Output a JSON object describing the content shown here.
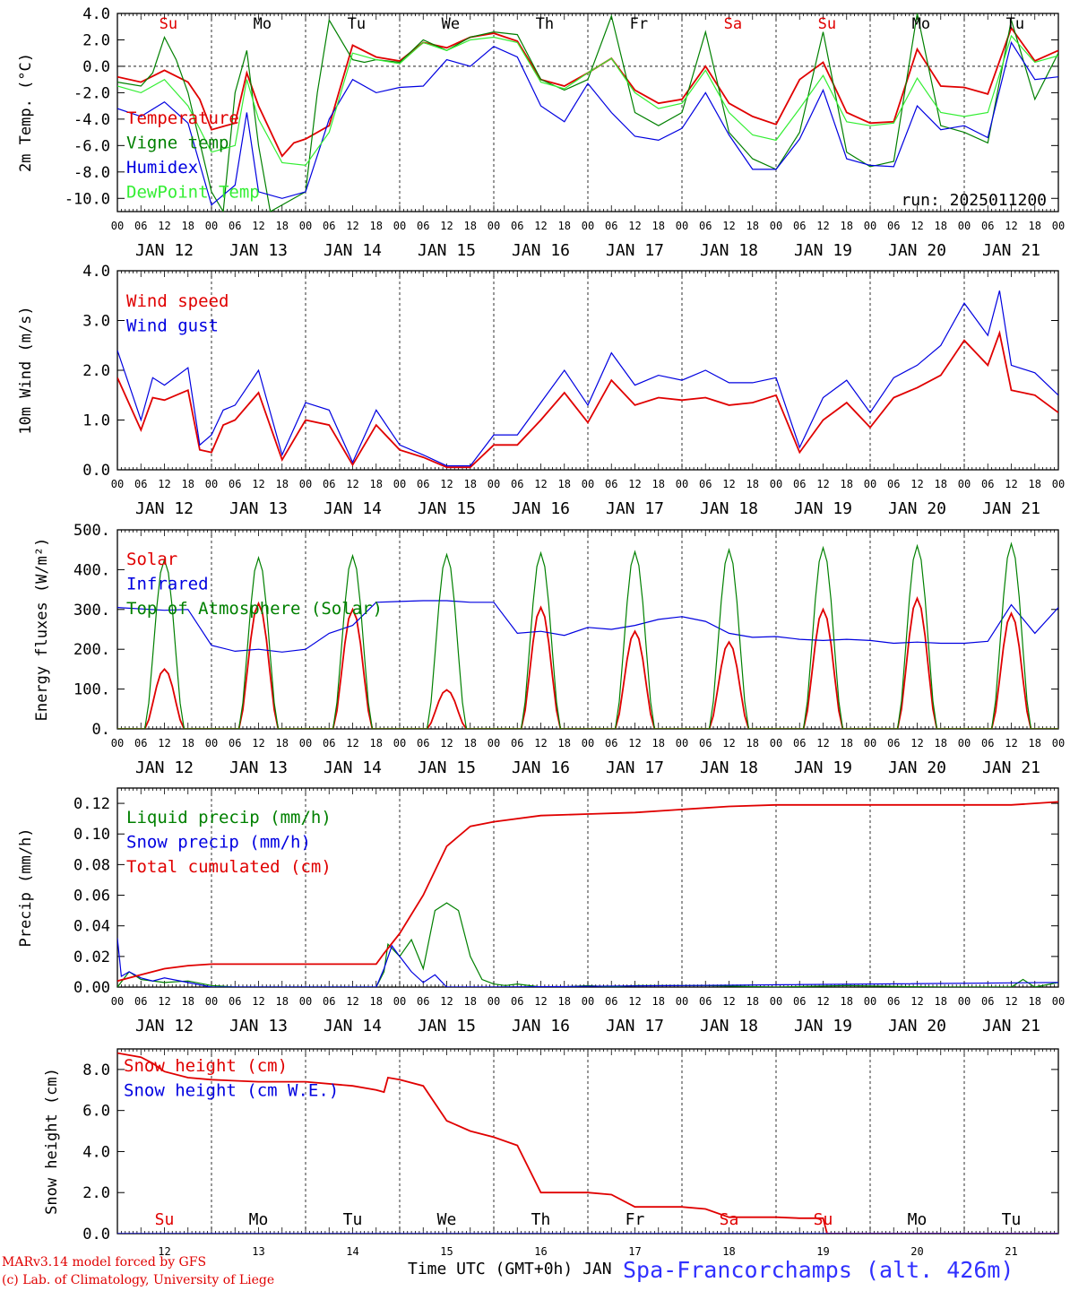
{
  "station": "Spa-Francorchamps (alt. 426m)",
  "credit_line1": "MARv3.14 model forced by GFS",
  "credit_line2": "(c) Lab. of Climatology, University of Liege",
  "x_axis_title": "Time UTC (GMT+0h) JAN",
  "run_label": "run: 2025011200",
  "hour_ticks": [
    "00",
    "06",
    "12",
    "18"
  ],
  "date_labels": [
    "JAN 12",
    "JAN 13",
    "JAN 14",
    "JAN 15",
    "JAN 16",
    "JAN 17",
    "JAN 18",
    "JAN 19",
    "JAN 20",
    "JAN 21"
  ],
  "day_numbers": [
    "12",
    "13",
    "14",
    "15",
    "16",
    "17",
    "18",
    "19",
    "20",
    "21"
  ],
  "weekdays": [
    "Su",
    "Mo",
    "Tu",
    "We",
    "Th",
    "Fr",
    "Sa",
    "Su",
    "Mo",
    "Tu"
  ],
  "weekend_color": "#e00000",
  "chart_data": [
    {
      "type": "line",
      "ylabel": "2m Temp. (°C)",
      "ylim": [
        -11,
        4
      ],
      "yticks": [
        "-10.0",
        "-8.0",
        "-6.0",
        "-4.0",
        "-2.0",
        "0.0",
        "2.0",
        "4.0"
      ],
      "zero_line": true,
      "x_unit": "hours since JAN 12 00 UTC",
      "series": [
        {
          "name": "Temperature",
          "color": "#e00000",
          "x": [
            0,
            6,
            12,
            18,
            21,
            24,
            30,
            33,
            36,
            42,
            45,
            48,
            54,
            60,
            66,
            72,
            78,
            84,
            90,
            96,
            102,
            108,
            114,
            120,
            126,
            132,
            138,
            144,
            150,
            156,
            162,
            168,
            174,
            180,
            186,
            192,
            198,
            204,
            210,
            216,
            222,
            228,
            234,
            240
          ],
          "y": [
            -0.8,
            -1.2,
            -0.3,
            -1.2,
            -2.5,
            -4.8,
            -4.3,
            -0.5,
            -3,
            -6.8,
            -5.8,
            -5.5,
            -4.5,
            1.6,
            0.7,
            0.4,
            1.8,
            1.4,
            2.2,
            2.5,
            1.9,
            -1.0,
            -1.5,
            -0.5,
            0.6,
            -1.8,
            -2.8,
            -2.5,
            0.0,
            -2.8,
            -3.8,
            -4.4,
            -1.0,
            0.3,
            -3.5,
            -4.3,
            -4.2,
            1.3,
            -1.5,
            -1.6,
            -2.1,
            2.9,
            0.4,
            1.2
          ]
        },
        {
          "name": "Vigne temp",
          "color": "#008000",
          "x": [
            0,
            6,
            9,
            12,
            15,
            18,
            24,
            27,
            30,
            33,
            36,
            39,
            42,
            48,
            51,
            54,
            60,
            63,
            66,
            72,
            78,
            84,
            90,
            96,
            102,
            108,
            114,
            120,
            126,
            132,
            138,
            144,
            150,
            156,
            162,
            168,
            174,
            180,
            186,
            192,
            198,
            204,
            210,
            216,
            222,
            228,
            234,
            240
          ],
          "y": [
            -1.2,
            -1.5,
            -0.5,
            2.2,
            0.5,
            -2.0,
            -9.5,
            -11,
            -2,
            1.2,
            -6,
            -11,
            -10.5,
            -9.5,
            -2,
            3.5,
            0.5,
            0.3,
            0.5,
            0.3,
            2.0,
            1.2,
            2.2,
            2.6,
            2.4,
            -1.0,
            -1.8,
            -1.0,
            3.8,
            -3.5,
            -4.5,
            -3.5,
            2.6,
            -5.0,
            -7.0,
            -7.8,
            -5.0,
            2.6,
            -6.5,
            -7.6,
            -7.2,
            4.0,
            -4.5,
            -5.0,
            -5.8,
            3.5,
            -2.5,
            1.0
          ]
        },
        {
          "name": "Humidex",
          "color": "#0000e0",
          "x": [
            0,
            6,
            12,
            18,
            24,
            30,
            33,
            36,
            42,
            48,
            54,
            60,
            66,
            72,
            78,
            84,
            90,
            96,
            102,
            108,
            114,
            120,
            126,
            132,
            138,
            144,
            150,
            156,
            162,
            168,
            174,
            180,
            186,
            192,
            198,
            204,
            210,
            216,
            222,
            228,
            234,
            240
          ],
          "y": [
            -3.2,
            -3.8,
            -2.7,
            -4.3,
            -10.5,
            -9,
            -3.5,
            -9.5,
            -10,
            -9.5,
            -4,
            -1,
            -2,
            -1.6,
            -1.5,
            0.5,
            0.0,
            1.5,
            0.7,
            -3.0,
            -4.2,
            -1.3,
            -3.5,
            -5.3,
            -5.6,
            -4.7,
            -2.0,
            -5.2,
            -7.8,
            -7.8,
            -5.5,
            -1.8,
            -7.0,
            -7.5,
            -7.6,
            -3.0,
            -4.8,
            -4.5,
            -5.4,
            1.8,
            -1.0,
            -0.8
          ]
        },
        {
          "name": "DewPoint Temp",
          "color": "#33ee33",
          "x": [
            0,
            6,
            12,
            18,
            24,
            30,
            33,
            36,
            42,
            48,
            54,
            60,
            66,
            72,
            78,
            84,
            90,
            96,
            102,
            108,
            114,
            120,
            126,
            132,
            138,
            144,
            150,
            156,
            162,
            168,
            174,
            180,
            186,
            192,
            198,
            204,
            210,
            216,
            222,
            228,
            234,
            240
          ],
          "y": [
            -1.5,
            -2.0,
            -1.0,
            -3.0,
            -6.5,
            -6.0,
            -1.0,
            -4.0,
            -7.3,
            -7.5,
            -5.0,
            1.0,
            0.5,
            0.2,
            1.8,
            1.2,
            2.0,
            2.2,
            1.8,
            -1.2,
            -1.7,
            -0.5,
            0.6,
            -2.0,
            -3.2,
            -2.8,
            -0.3,
            -3.5,
            -5.2,
            -5.6,
            -3.2,
            -0.7,
            -4.2,
            -4.5,
            -4.3,
            -0.9,
            -3.5,
            -3.8,
            -3.5,
            2.3,
            0.3,
            0.8
          ]
        }
      ],
      "annotation": "run: 2025011200"
    },
    {
      "type": "line",
      "ylabel": "10m Wind (m/s)",
      "ylim": [
        0,
        4
      ],
      "yticks": [
        "0.0",
        "1.0",
        "2.0",
        "3.0",
        "4.0"
      ],
      "x_unit": "hours since JAN 12 00 UTC",
      "series": [
        {
          "name": "Wind speed",
          "color": "#e00000",
          "x": [
            0,
            6,
            9,
            12,
            18,
            21,
            24,
            27,
            30,
            36,
            42,
            48,
            54,
            60,
            66,
            72,
            78,
            84,
            90,
            96,
            102,
            108,
            114,
            120,
            126,
            132,
            138,
            144,
            150,
            156,
            162,
            168,
            174,
            180,
            186,
            192,
            198,
            204,
            210,
            216,
            222,
            225,
            228,
            234,
            240
          ],
          "y": [
            1.85,
            0.8,
            1.45,
            1.4,
            1.6,
            0.4,
            0.35,
            0.9,
            1.0,
            1.55,
            0.2,
            1.0,
            0.9,
            0.1,
            0.9,
            0.4,
            0.25,
            0.05,
            0.05,
            0.5,
            0.5,
            1.0,
            1.55,
            0.95,
            1.8,
            1.3,
            1.45,
            1.4,
            1.45,
            1.3,
            1.35,
            1.5,
            0.35,
            1.0,
            1.35,
            0.85,
            1.45,
            1.65,
            1.9,
            2.6,
            2.1,
            2.75,
            1.6,
            1.5,
            1.15
          ]
        },
        {
          "name": "Wind gust",
          "color": "#0000e0",
          "x": [
            0,
            6,
            9,
            12,
            18,
            21,
            24,
            27,
            30,
            36,
            42,
            48,
            54,
            60,
            66,
            72,
            78,
            84,
            90,
            96,
            102,
            108,
            114,
            120,
            126,
            132,
            138,
            144,
            150,
            156,
            162,
            168,
            174,
            180,
            186,
            192,
            198,
            204,
            210,
            216,
            222,
            225,
            228,
            234,
            240
          ],
          "y": [
            2.4,
            1.0,
            1.85,
            1.7,
            2.05,
            0.5,
            0.7,
            1.2,
            1.3,
            2.0,
            0.3,
            1.35,
            1.2,
            0.15,
            1.2,
            0.5,
            0.3,
            0.08,
            0.08,
            0.7,
            0.7,
            1.35,
            2.0,
            1.3,
            2.35,
            1.7,
            1.9,
            1.8,
            2.0,
            1.75,
            1.75,
            1.85,
            0.45,
            1.45,
            1.8,
            1.15,
            1.85,
            2.1,
            2.5,
            3.35,
            2.7,
            3.6,
            2.1,
            1.95,
            1.5
          ]
        }
      ]
    },
    {
      "type": "line",
      "ylabel": "Energy fluxes (W/m²)",
      "ylim": [
        0,
        500
      ],
      "yticks": [
        "0.",
        "100.",
        "200.",
        "300.",
        "400.",
        "500."
      ],
      "x_unit": "hours since JAN 12 00 UTC",
      "series": [
        {
          "name": "Solar",
          "color": "#e00000",
          "daily_peaks": [
            150,
            315,
            300,
            98,
            305,
            245,
            218,
            300,
            328,
            290
          ]
        },
        {
          "name": "Infrared",
          "color": "#0000e0",
          "x": [
            0,
            12,
            18,
            24,
            30,
            36,
            42,
            48,
            54,
            60,
            66,
            72,
            78,
            84,
            90,
            96,
            102,
            108,
            114,
            120,
            126,
            132,
            138,
            144,
            150,
            156,
            162,
            168,
            174,
            180,
            186,
            192,
            198,
            204,
            210,
            216,
            222,
            228,
            234,
            240
          ],
          "y": [
            305,
            298,
            300,
            210,
            195,
            200,
            193,
            200,
            240,
            260,
            318,
            320,
            322,
            322,
            318,
            318,
            240,
            245,
            235,
            255,
            250,
            260,
            275,
            282,
            270,
            240,
            230,
            232,
            225,
            222,
            225,
            222,
            215,
            218,
            215,
            215,
            220,
            312,
            240,
            305
          ]
        },
        {
          "name": "Top of Atmosphere (Solar)",
          "color": "#008000",
          "daily_peaks": [
            425,
            430,
            435,
            438,
            442,
            445,
            450,
            455,
            460,
            465
          ]
        }
      ]
    },
    {
      "type": "line",
      "ylabel": "Precip (mm/h)",
      "ylim": [
        0,
        0.13
      ],
      "yticks": [
        "0.00",
        "0.02",
        "0.04",
        "0.06",
        "0.08",
        "0.10",
        "0.12"
      ],
      "x_unit": "hours since JAN 12 00 UTC",
      "series": [
        {
          "name": "Liquid precip (mm/h)",
          "color": "#008000",
          "x": [
            0,
            3,
            6,
            12,
            18,
            24,
            30,
            66,
            68,
            69,
            72,
            75,
            78,
            81,
            84,
            87,
            90,
            93,
            96,
            99,
            102,
            108,
            114,
            120,
            126,
            132,
            150,
            168,
            186,
            210,
            228,
            231,
            234,
            240
          ],
          "y": [
            0.0,
            0.01,
            0.005,
            0.003,
            0.004,
            0.001,
            0,
            0,
            0.01,
            0.028,
            0.02,
            0.031,
            0.012,
            0.05,
            0.055,
            0.05,
            0.02,
            0.005,
            0.002,
            0.001,
            0.002,
            0.0,
            0.0,
            0.001,
            0.0,
            0.001,
            0.001,
            0.0,
            0.001,
            0.0,
            0.0,
            0.005,
            0.0,
            0.003
          ]
        },
        {
          "name": "Snow precip (mm/h)",
          "color": "#0000e0",
          "x": [
            0,
            1,
            3,
            6,
            9,
            12,
            18,
            24,
            66,
            68,
            70,
            72,
            75,
            78,
            81,
            84,
            90,
            96,
            240
          ],
          "y": [
            0.032,
            0.007,
            0.01,
            0.006,
            0.004,
            0.006,
            0.003,
            0.0,
            0.0,
            0.012,
            0.027,
            0.02,
            0.01,
            0.003,
            0.008,
            0.0,
            0.0,
            0.0,
            0.003
          ]
        },
        {
          "name": "Total cumulated (cm)",
          "color": "#e00000",
          "x": [
            0,
            6,
            12,
            18,
            24,
            48,
            66,
            68,
            72,
            78,
            84,
            90,
            96,
            108,
            120,
            132,
            144,
            156,
            168,
            192,
            216,
            228,
            240
          ],
          "y": [
            0.004,
            0.008,
            0.012,
            0.014,
            0.015,
            0.015,
            0.015,
            0.022,
            0.035,
            0.06,
            0.092,
            0.105,
            0.108,
            0.112,
            0.113,
            0.114,
            0.116,
            0.118,
            0.119,
            0.119,
            0.119,
            0.119,
            0.121
          ]
        }
      ]
    },
    {
      "type": "line",
      "ylabel": "Snow height (cm)",
      "ylim": [
        0,
        9
      ],
      "yticks": [
        "0.0",
        "2.0",
        "4.0",
        "6.0",
        "8.0"
      ],
      "x_unit": "hours since JAN 12 00 UTC",
      "series": [
        {
          "name": "Snow height (cm)",
          "color": "#e00000",
          "x": [
            0,
            6,
            9,
            12,
            18,
            24,
            36,
            48,
            60,
            66,
            68,
            69,
            72,
            78,
            84,
            90,
            96,
            102,
            108,
            114,
            120,
            126,
            132,
            138,
            144,
            150,
            156,
            162,
            168,
            174,
            180,
            181,
            186,
            192,
            216,
            240
          ],
          "y": [
            8.8,
            8.6,
            8.3,
            7.9,
            7.6,
            7.5,
            7.4,
            7.4,
            7.2,
            7.0,
            6.9,
            7.6,
            7.5,
            7.2,
            5.5,
            5.0,
            4.7,
            4.3,
            2.0,
            2.0,
            2.0,
            1.9,
            1.3,
            1.3,
            1.3,
            1.2,
            0.8,
            0.8,
            0.8,
            0.75,
            0.75,
            0.0,
            0.0,
            0.0,
            0.0,
            0.0
          ]
        },
        {
          "name": "Snow height (cm W.E.)",
          "color": "#0000e0",
          "x": [
            0,
            240
          ],
          "y": [
            0,
            0
          ]
        }
      ]
    }
  ]
}
